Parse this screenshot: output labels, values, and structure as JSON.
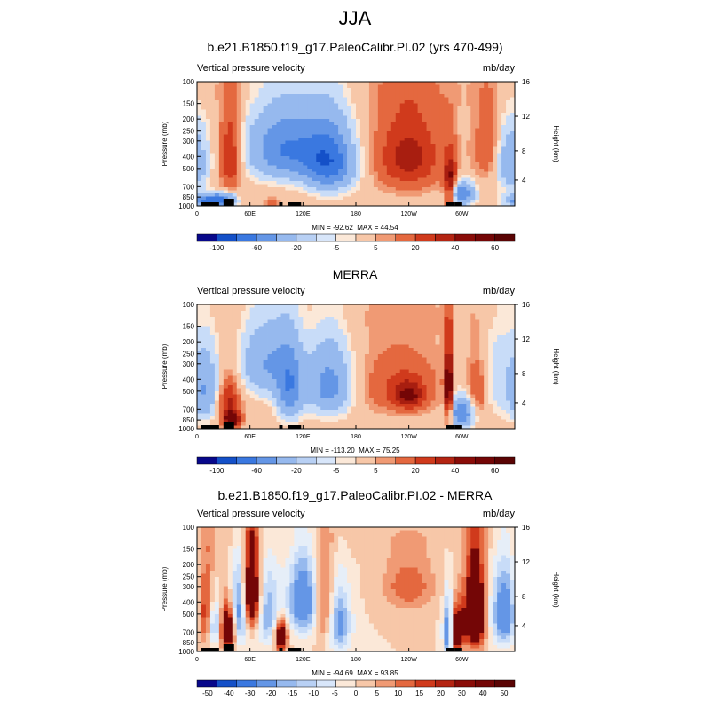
{
  "main_title": "JJA",
  "colors": {
    "levels11": [
      "#08088a",
      "#1450c8",
      "#3a78e0",
      "#6496e6",
      "#96b9ee",
      "#c8dcf8",
      "#fbe8d8",
      "#f7c7a8",
      "#f09a74",
      "#e4683f",
      "#d03a1c",
      "#a81e10",
      "#740606"
    ],
    "levels12": [
      "#08088a",
      "#1450c8",
      "#3a78e0",
      "#6496e6",
      "#96b9ee",
      "#c8dcf8",
      "#e6eef8",
      "#fbe8d8",
      "#f7c7a8",
      "#f09a74",
      "#e4683f",
      "#d03a1c",
      "#740606"
    ],
    "land": "#000000"
  },
  "chart_data": [
    {
      "type": "contour",
      "title": "b.e21.B1850.f19_g17.PaleoCalibr.PI.02 (yrs 470-499)",
      "left_string": "Vertical pressure velocity",
      "right_string": "mb/day",
      "ylabel": "Pressure (mb)",
      "y2label": "Height (km)",
      "y_ticks": [
        "100",
        "150",
        "200",
        "250",
        "300",
        "400",
        "500",
        "700",
        "850",
        "1000"
      ],
      "y2_ticks": [
        "16",
        "12",
        "8",
        "4"
      ],
      "x_ticks": [
        "0",
        "60E",
        "120E",
        "180",
        "120W",
        "60W"
      ],
      "min_label": "MIN = -92.62",
      "max_label": "MAX =  44.54",
      "colorbar_labels": [
        "-100",
        "-60",
        "-20",
        "-5",
        "5",
        "20",
        "40",
        "60"
      ],
      "colorbar_levels": [
        "-100",
        "-80",
        "-60",
        "-40",
        "-20",
        "-10",
        "-5",
        "0",
        "5",
        "10",
        "20",
        "30",
        "40",
        "50",
        "60",
        "70"
      ],
      "blobs": [
        {
          "lon": 10,
          "p": 900,
          "sx": 14,
          "sy": 70,
          "v": -60
        },
        {
          "lon": 38,
          "p": 400,
          "sx": 9,
          "sy": 220,
          "v": 35
        },
        {
          "lon": 30,
          "p": 900,
          "sx": 10,
          "sy": 80,
          "v": -50
        },
        {
          "lon": 100,
          "p": 350,
          "sx": 30,
          "sy": 160,
          "v": -60
        },
        {
          "lon": 150,
          "p": 450,
          "sx": 20,
          "sy": 190,
          "v": -70
        },
        {
          "lon": 240,
          "p": 400,
          "sx": 28,
          "sy": 220,
          "v": 35
        },
        {
          "lon": 287,
          "p": 700,
          "sx": 5,
          "sy": 240,
          "v": 45
        },
        {
          "lon": 300,
          "p": 800,
          "sx": 10,
          "sy": 120,
          "v": -60
        },
        {
          "lon": 330,
          "p": 350,
          "sx": 12,
          "sy": 180,
          "v": 20
        },
        {
          "lon": 355,
          "p": 450,
          "sx": 12,
          "sy": 180,
          "v": -40
        },
        {
          "lon": 85,
          "p": 950,
          "sx": 6,
          "sy": 60,
          "v": 20
        }
      ]
    },
    {
      "type": "contour",
      "title": "MERRA",
      "left_string": "Vertical pressure velocity",
      "right_string": "mb/day",
      "ylabel": "Pressure (mb)",
      "y2label": "Height (km)",
      "y_ticks": [
        "100",
        "150",
        "200",
        "250",
        "300",
        "400",
        "500",
        "700",
        "850",
        "1000"
      ],
      "y2_ticks": [
        "16",
        "12",
        "8",
        "4"
      ],
      "x_ticks": [
        "0",
        "60E",
        "120E",
        "180",
        "120W",
        "60W"
      ],
      "min_label": "MIN = -113.20",
      "max_label": "MAX =  75.25",
      "colorbar_labels": [
        "-100",
        "-60",
        "-20",
        "-5",
        "5",
        "20",
        "40",
        "60"
      ],
      "colorbar_levels": [
        "-100",
        "-80",
        "-60",
        "-40",
        "-20",
        "-10",
        "-5",
        "0",
        "5",
        "10",
        "20",
        "30",
        "40",
        "50",
        "60",
        "70"
      ],
      "blobs": [
        {
          "lon": 10,
          "p": 500,
          "sx": 12,
          "sy": 220,
          "v": -40
        },
        {
          "lon": 35,
          "p": 600,
          "sx": 10,
          "sy": 200,
          "v": 35
        },
        {
          "lon": 40,
          "p": 850,
          "sx": 7,
          "sy": 80,
          "v": 50
        },
        {
          "lon": 80,
          "p": 300,
          "sx": 22,
          "sy": 150,
          "v": -40
        },
        {
          "lon": 105,
          "p": 500,
          "sx": 10,
          "sy": 220,
          "v": -50
        },
        {
          "lon": 150,
          "p": 450,
          "sx": 18,
          "sy": 200,
          "v": -50
        },
        {
          "lon": 230,
          "p": 450,
          "sx": 35,
          "sy": 200,
          "v": 20
        },
        {
          "lon": 240,
          "p": 550,
          "sx": 12,
          "sy": 100,
          "v": 30
        },
        {
          "lon": 285,
          "p": 500,
          "sx": 3,
          "sy": 260,
          "v": 60
        },
        {
          "lon": 300,
          "p": 750,
          "sx": 10,
          "sy": 150,
          "v": -60
        },
        {
          "lon": 318,
          "p": 500,
          "sx": 8,
          "sy": 200,
          "v": 25
        },
        {
          "lon": 340,
          "p": 400,
          "sx": 15,
          "sy": 250,
          "v": -15
        }
      ]
    },
    {
      "type": "contour",
      "title": "b.e21.B1850.f19_g17.PaleoCalibr.PI.02 - MERRA",
      "left_string": "Vertical pressure velocity",
      "right_string": "mb/day",
      "ylabel": "Pressure (mb)",
      "y2label": "Height (km)",
      "y_ticks": [
        "100",
        "150",
        "200",
        "250",
        "300",
        "400",
        "500",
        "700",
        "850",
        "1000"
      ],
      "y2_ticks": [
        "16",
        "12",
        "8",
        "4"
      ],
      "x_ticks": [
        "0",
        "60E",
        "120E",
        "180",
        "120W",
        "60W"
      ],
      "min_label": "MIN = -94.69",
      "max_label": "MAX =  93.85",
      "colorbar_labels": [
        "-50",
        "-40",
        "-30",
        "-20",
        "-15",
        "-10",
        "-5",
        "0",
        "5",
        "10",
        "15",
        "20",
        "30",
        "40",
        "50"
      ],
      "colorbar_levels": [
        "-50",
        "-40",
        "-30",
        "-20",
        "-15",
        "-10",
        "-5",
        "0",
        "5",
        "10",
        "15",
        "20",
        "30",
        "40",
        "50"
      ],
      "blobs": [
        {
          "lon": 10,
          "p": 500,
          "sx": 8,
          "sy": 250,
          "v": 30
        },
        {
          "lon": 20,
          "p": 600,
          "sx": 6,
          "sy": 200,
          "v": -30
        },
        {
          "lon": 35,
          "p": 650,
          "sx": 7,
          "sy": 200,
          "v": 40
        },
        {
          "lon": 47,
          "p": 500,
          "sx": 7,
          "sy": 250,
          "v": -30
        },
        {
          "lon": 62,
          "p": 350,
          "sx": 7,
          "sy": 200,
          "v": 40
        },
        {
          "lon": 80,
          "p": 500,
          "sx": 10,
          "sy": 250,
          "v": -20
        },
        {
          "lon": 95,
          "p": 750,
          "sx": 5,
          "sy": 150,
          "v": 40
        },
        {
          "lon": 120,
          "p": 400,
          "sx": 12,
          "sy": 200,
          "v": -30
        },
        {
          "lon": 145,
          "p": 450,
          "sx": 8,
          "sy": 250,
          "v": 20
        },
        {
          "lon": 160,
          "p": 600,
          "sx": 10,
          "sy": 250,
          "v": -25
        },
        {
          "lon": 240,
          "p": 300,
          "sx": 20,
          "sy": 100,
          "v": 15
        },
        {
          "lon": 285,
          "p": 700,
          "sx": 4,
          "sy": 250,
          "v": -40
        },
        {
          "lon": 293,
          "p": 700,
          "sx": 6,
          "sy": 200,
          "v": 40
        },
        {
          "lon": 315,
          "p": 500,
          "sx": 8,
          "sy": 250,
          "v": 50
        },
        {
          "lon": 350,
          "p": 500,
          "sx": 12,
          "sy": 250,
          "v": -30
        }
      ]
    }
  ]
}
